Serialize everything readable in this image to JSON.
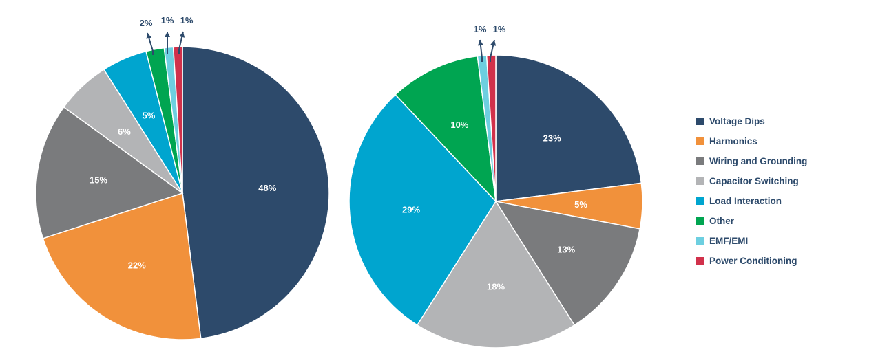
{
  "chart_data": [
    {
      "type": "pie",
      "title": "",
      "categories": [
        "Voltage Dips",
        "Harmonics",
        "Wiring and Grounding",
        "Capacitor Switching",
        "Load Interaction",
        "Other",
        "EMF/EMI",
        "Power Conditioning"
      ],
      "values": [
        48,
        22,
        15,
        6,
        5,
        2,
        1,
        1
      ],
      "labels": [
        "48%",
        "22%",
        "15%",
        "6%",
        "5%",
        "2%",
        "1%",
        "1%"
      ]
    },
    {
      "type": "pie",
      "title": "",
      "categories": [
        "Voltage Dips",
        "Harmonics",
        "Wiring and Grounding",
        "Capacitor Switching",
        "Load Interaction",
        "Other",
        "EMF/EMI",
        "Power Conditioning"
      ],
      "values": [
        23,
        5,
        13,
        18,
        29,
        10,
        1,
        1
      ],
      "labels": [
        "23%",
        "5%",
        "13%",
        "18%",
        "29%",
        "10%",
        "1%",
        "1%"
      ]
    }
  ],
  "legend": {
    "position": "right",
    "items": [
      {
        "label": "Voltage Dips",
        "color": "#2d4a6b"
      },
      {
        "label": "Harmonics",
        "color": "#f1913b"
      },
      {
        "label": "Wiring and Grounding",
        "color": "#7a7b7d"
      },
      {
        "label": "Capacitor Switching",
        "color": "#b3b4b6"
      },
      {
        "label": "Load Interaction",
        "color": "#00a5cf"
      },
      {
        "label": "Other",
        "color": "#00a551"
      },
      {
        "label": "EMF/EMI",
        "color": "#6dcfe0"
      },
      {
        "label": "Power Conditioning",
        "color": "#d1314b"
      }
    ]
  }
}
